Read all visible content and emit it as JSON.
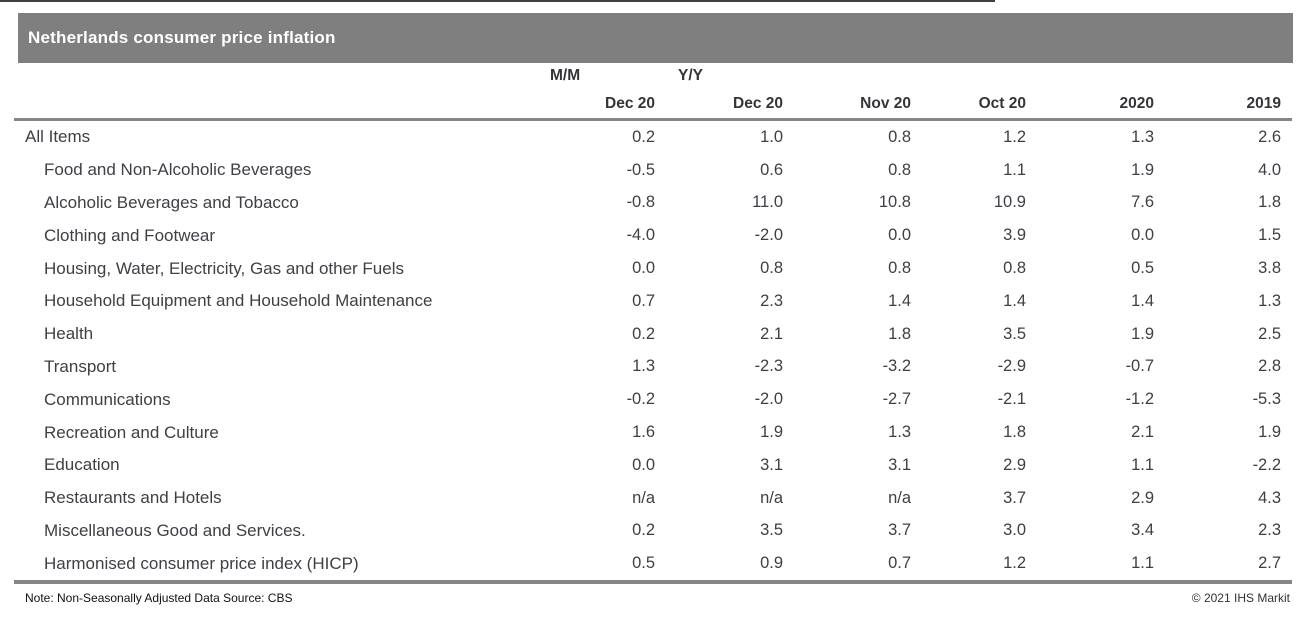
{
  "title_bar": {
    "title": "Netherlands consumer price inflation"
  },
  "table": {
    "group_headers": [
      {
        "label": "M/M"
      },
      {
        "label": "Y/Y"
      }
    ],
    "column_headers": [
      "Dec 20",
      "Dec 20",
      "Nov 20",
      "Oct 20",
      "2020",
      "2019"
    ],
    "rows": [
      {
        "label": "All Items",
        "indent": false,
        "values": [
          "0.2",
          "1.0",
          "0.8",
          "1.2",
          "1.3",
          "2.6"
        ]
      },
      {
        "label": "Food and Non-Alcoholic Beverages",
        "indent": true,
        "values": [
          "-0.5",
          "0.6",
          "0.8",
          "1.1",
          "1.9",
          "4.0"
        ]
      },
      {
        "label": "Alcoholic Beverages and Tobacco",
        "indent": true,
        "values": [
          "-0.8",
          "11.0",
          "10.8",
          "10.9",
          "7.6",
          "1.8"
        ]
      },
      {
        "label": "Clothing and Footwear",
        "indent": true,
        "values": [
          "-4.0",
          "-2.0",
          "0.0",
          "3.9",
          "0.0",
          "1.5"
        ]
      },
      {
        "label": "Housing, Water, Electricity, Gas and other Fuels",
        "indent": true,
        "values": [
          "0.0",
          "0.8",
          "0.8",
          "0.8",
          "0.5",
          "3.8"
        ]
      },
      {
        "label": "Household Equipment and Household Maintenance",
        "indent": true,
        "values": [
          "0.7",
          "2.3",
          "1.4",
          "1.4",
          "1.4",
          "1.3"
        ]
      },
      {
        "label": "Health",
        "indent": true,
        "values": [
          "0.2",
          "2.1",
          "1.8",
          "3.5",
          "1.9",
          "2.5"
        ]
      },
      {
        "label": "Transport",
        "indent": true,
        "values": [
          "1.3",
          "-2.3",
          "-3.2",
          "-2.9",
          "-0.7",
          "2.8"
        ]
      },
      {
        "label": "Communications",
        "indent": true,
        "values": [
          "-0.2",
          "-2.0",
          "-2.7",
          "-2.1",
          "-1.2",
          "-5.3"
        ]
      },
      {
        "label": "Recreation and Culture",
        "indent": true,
        "values": [
          "1.6",
          "1.9",
          "1.3",
          "1.8",
          "2.1",
          "1.9"
        ]
      },
      {
        "label": "Education",
        "indent": true,
        "values": [
          "0.0",
          "3.1",
          "3.1",
          "2.9",
          "1.1",
          "-2.2"
        ]
      },
      {
        "label": "Restaurants and Hotels",
        "indent": true,
        "values": [
          "n/a",
          "n/a",
          "n/a",
          "3.7",
          "2.9",
          "4.3"
        ]
      },
      {
        "label": "Miscellaneous Good and Services.",
        "indent": true,
        "values": [
          "0.2",
          "3.5",
          "3.7",
          "3.0",
          "3.4",
          "2.3"
        ]
      },
      {
        "label": "Harmonised consumer price index (HICP)",
        "indent": true,
        "values": [
          "0.5",
          "0.9",
          "0.7",
          "1.2",
          "1.1",
          "2.7"
        ]
      }
    ]
  },
  "footer": {
    "note": "Note: Non-Seasonally Adjusted Data Source: CBS",
    "copyright": "© 2021 IHS Markit"
  },
  "colors": {
    "title_bar_bg": "#7f7f7f",
    "title_text": "#ffffff",
    "rule": "#868686",
    "body_text": "#3d4045",
    "header_text": "#333538"
  },
  "chart_data": {
    "type": "table",
    "title": "Netherlands consumer price inflation",
    "column_groups": [
      "M/M",
      "Y/Y"
    ],
    "columns": [
      "M/M Dec 20",
      "Y/Y Dec 20",
      "Y/Y Nov 20",
      "Y/Y Oct 20",
      "2020",
      "2019"
    ],
    "rows": [
      {
        "category": "All Items",
        "values": [
          0.2,
          1.0,
          0.8,
          1.2,
          1.3,
          2.6
        ]
      },
      {
        "category": "Food and Non-Alcoholic Beverages",
        "values": [
          -0.5,
          0.6,
          0.8,
          1.1,
          1.9,
          4.0
        ]
      },
      {
        "category": "Alcoholic Beverages and Tobacco",
        "values": [
          -0.8,
          11.0,
          10.8,
          10.9,
          7.6,
          1.8
        ]
      },
      {
        "category": "Clothing and Footwear",
        "values": [
          -4.0,
          -2.0,
          0.0,
          3.9,
          0.0,
          1.5
        ]
      },
      {
        "category": "Housing, Water, Electricity, Gas and other Fuels",
        "values": [
          0.0,
          0.8,
          0.8,
          0.8,
          0.5,
          3.8
        ]
      },
      {
        "category": "Household Equipment and Household Maintenance",
        "values": [
          0.7,
          2.3,
          1.4,
          1.4,
          1.4,
          1.3
        ]
      },
      {
        "category": "Health",
        "values": [
          0.2,
          2.1,
          1.8,
          3.5,
          1.9,
          2.5
        ]
      },
      {
        "category": "Transport",
        "values": [
          1.3,
          -2.3,
          -3.2,
          -2.9,
          -0.7,
          2.8
        ]
      },
      {
        "category": "Communications",
        "values": [
          -0.2,
          -2.0,
          -2.7,
          -2.1,
          -1.2,
          -5.3
        ]
      },
      {
        "category": "Recreation and Culture",
        "values": [
          1.6,
          1.9,
          1.3,
          1.8,
          2.1,
          1.9
        ]
      },
      {
        "category": "Education",
        "values": [
          0.0,
          3.1,
          3.1,
          2.9,
          1.1,
          -2.2
        ]
      },
      {
        "category": "Restaurants and Hotels",
        "values": [
          null,
          null,
          null,
          3.7,
          2.9,
          4.3
        ]
      },
      {
        "category": "Miscellaneous Good and Services.",
        "values": [
          0.2,
          3.5,
          3.7,
          3.0,
          3.4,
          2.3
        ]
      },
      {
        "category": "Harmonised consumer price index (HICP)",
        "values": [
          0.5,
          0.9,
          0.7,
          1.2,
          1.1,
          2.7
        ]
      }
    ],
    "note": "Note: Non-Seasonally Adjusted Data Source: CBS",
    "source_attribution": "© 2021 IHS Markit"
  }
}
